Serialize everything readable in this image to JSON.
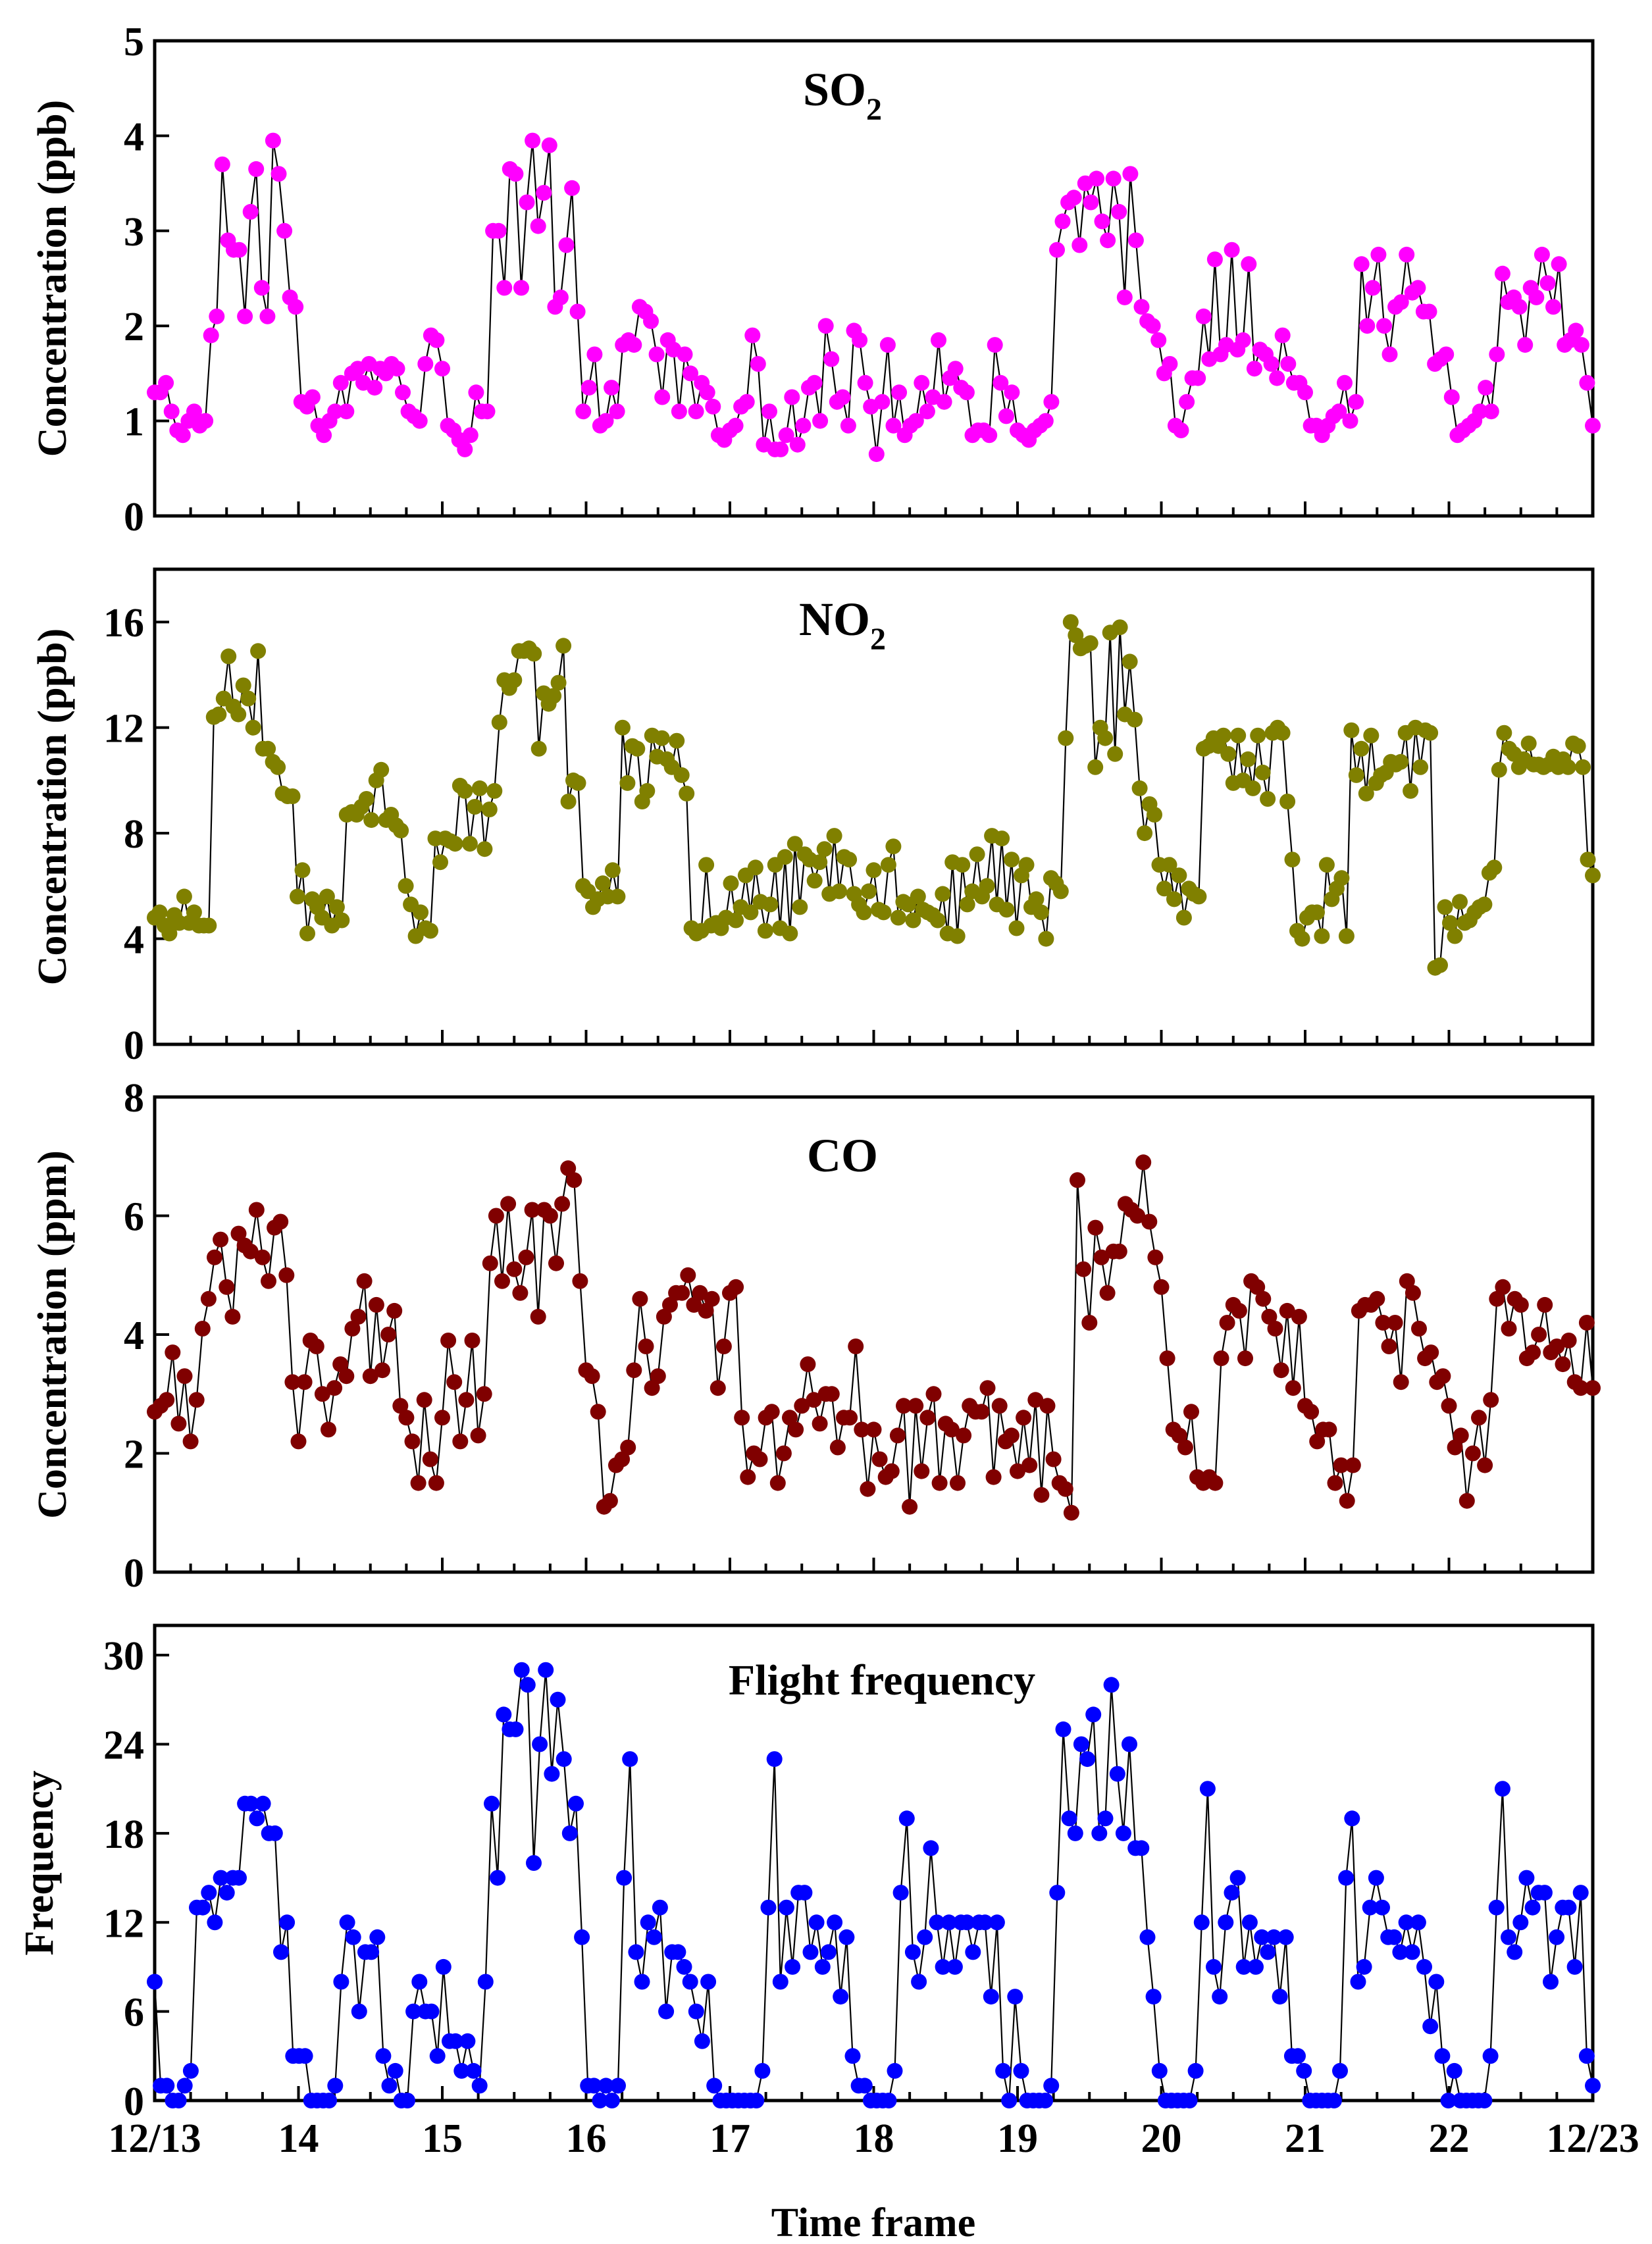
{
  "chart_data": [
    {
      "type": "line",
      "title": "SO2",
      "title_main": "SO",
      "title_sub": "2",
      "ylabel": "Concentration (ppb)",
      "ylim": [
        0,
        5
      ],
      "yticks": [
        0,
        1,
        2,
        3,
        4,
        5
      ],
      "xlim": [
        0,
        10
      ],
      "marker_color": "#ff00ff",
      "values": [
        1.3,
        1.3,
        1.4,
        1.1,
        0.9,
        0.85,
        1.0,
        1.1,
        0.95,
        1.0,
        1.9,
        2.1,
        3.7,
        2.9,
        2.8,
        2.8,
        2.1,
        3.2,
        3.65,
        2.4,
        2.1,
        3.95,
        3.6,
        3.0,
        2.3,
        2.2,
        1.2,
        1.15,
        1.25,
        0.95,
        0.85,
        1.0,
        1.1,
        1.4,
        1.1,
        1.5,
        1.55,
        1.4,
        1.6,
        1.35,
        1.55,
        1.5,
        1.6,
        1.55,
        1.3,
        1.1,
        1.05,
        1.0,
        1.6,
        1.9,
        1.85,
        1.55,
        0.95,
        0.9,
        0.8,
        0.7,
        0.85,
        1.3,
        1.1,
        1.1,
        3.0,
        3.0,
        2.4,
        3.65,
        3.6,
        2.4,
        3.3,
        3.95,
        3.05,
        3.4,
        3.9,
        2.2,
        2.3,
        2.85,
        3.45,
        2.15,
        1.1,
        1.35,
        1.7,
        0.95,
        1.0,
        1.35,
        1.1,
        1.8,
        1.85,
        1.8,
        2.2,
        2.15,
        2.05,
        1.7,
        1.25,
        1.85,
        1.75,
        1.1,
        1.7,
        1.5,
        1.1,
        1.4,
        1.3,
        1.15,
        0.85,
        0.8,
        0.9,
        0.95,
        1.15,
        1.2,
        1.9,
        1.6,
        0.75,
        1.1,
        0.7,
        0.7,
        0.85,
        1.25,
        0.75,
        0.95,
        1.35,
        1.4,
        1.0,
        2.0,
        1.65,
        1.2,
        1.25,
        0.95,
        1.95,
        1.85,
        1.4,
        1.15,
        0.65,
        1.2,
        1.8,
        0.95,
        1.3,
        0.85,
        0.95,
        1.0,
        1.4,
        1.1,
        1.25,
        1.85,
        1.2,
        1.45,
        1.55,
        1.35,
        1.3,
        0.85,
        0.9,
        0.9,
        0.85,
        1.8,
        1.4,
        1.05,
        1.3,
        0.9,
        0.85,
        0.8,
        0.9,
        0.95,
        1.0,
        1.2,
        2.8,
        3.1,
        3.3,
        3.35,
        2.85,
        3.5,
        3.3,
        3.55,
        3.1,
        2.9,
        3.55,
        3.2,
        2.3,
        3.6,
        2.9,
        2.2,
        2.05,
        2.0,
        1.85,
        1.5,
        1.6,
        0.95,
        0.9,
        1.2,
        1.45,
        1.45,
        2.1,
        1.65,
        2.7,
        1.7,
        1.8,
        2.8,
        1.75,
        1.85,
        2.65,
        1.55,
        1.75,
        1.7,
        1.6,
        1.45,
        1.9,
        1.6,
        1.4,
        1.4,
        1.3,
        0.95,
        0.95,
        0.85,
        0.95,
        1.05,
        1.1,
        1.4,
        1.0,
        1.2,
        2.65,
        2.0,
        2.4,
        2.75,
        2.0,
        1.7,
        2.2,
        2.25,
        2.75,
        2.35,
        2.4,
        2.15,
        2.15,
        1.6,
        1.65,
        1.7,
        1.25,
        0.85,
        0.9,
        0.95,
        1.0,
        1.1,
        1.35,
        1.1,
        1.7,
        2.55,
        2.25,
        2.3,
        2.2,
        1.8,
        2.4,
        2.3,
        2.75,
        2.45,
        2.2,
        2.65,
        1.8,
        1.85,
        1.95,
        1.8,
        1.4,
        0.95
      ]
    },
    {
      "type": "line",
      "title": "NO2",
      "title_main": "NO",
      "title_sub": "2",
      "ylabel": "Concentration (ppb)",
      "ylim": [
        0,
        18
      ],
      "yticks": [
        0,
        4,
        8,
        12,
        16
      ],
      "xlim": [
        0,
        10
      ],
      "marker_color": "#808000",
      "values": [
        4.8,
        5.0,
        4.5,
        4.2,
        4.9,
        4.6,
        5.6,
        4.6,
        5.0,
        4.5,
        4.5,
        4.5,
        12.4,
        12.5,
        13.1,
        14.7,
        12.8,
        12.5,
        13.6,
        13.1,
        12.0,
        14.9,
        11.2,
        11.2,
        10.7,
        10.5,
        9.5,
        9.4,
        9.4,
        5.6,
        6.6,
        4.2,
        5.5,
        5.2,
        4.8,
        5.6,
        4.5,
        5.2,
        4.7,
        8.7,
        8.8,
        8.7,
        9.0,
        9.3,
        8.5,
        10.0,
        10.4,
        8.5,
        8.7,
        8.3,
        8.1,
        6.0,
        5.3,
        4.1,
        5.0,
        4.4,
        4.3,
        7.8,
        6.9,
        7.8,
        7.7,
        7.6,
        9.8,
        9.6,
        7.6,
        9.0,
        9.7,
        7.4,
        8.9,
        9.6,
        12.2,
        13.8,
        13.5,
        13.8,
        14.9,
        14.9,
        15.0,
        14.8,
        11.2,
        13.3,
        12.9,
        13.2,
        13.7,
        15.1,
        9.2,
        10.0,
        9.9,
        6.0,
        5.8,
        5.2,
        5.5,
        6.1,
        5.6,
        6.6,
        5.6,
        12.0,
        9.9,
        11.3,
        11.2,
        9.2,
        9.6,
        11.7,
        10.9,
        11.6,
        10.8,
        10.5,
        11.5,
        10.2,
        9.5,
        4.4,
        4.2,
        4.3,
        6.8,
        4.5,
        4.6,
        4.4,
        4.8,
        6.1,
        4.7,
        5.2,
        6.4,
        5.0,
        6.7,
        5.4,
        4.3,
        5.3,
        6.8,
        4.4,
        7.1,
        4.2,
        7.6,
        5.2,
        7.2,
        7.0,
        6.2,
        6.9,
        7.4,
        5.7,
        7.9,
        5.8,
        7.1,
        7.0,
        5.7,
        5.3,
        5.0,
        5.8,
        6.6,
        5.1,
        5.0,
        6.8,
        7.5,
        4.8,
        5.4,
        5.3,
        4.7,
        5.6,
        5.1,
        5.0,
        4.9,
        4.7,
        5.7,
        4.2,
        6.9,
        4.1,
        6.8,
        5.3,
        5.8,
        7.2,
        5.6,
        6.0,
        7.9,
        5.3,
        7.8,
        5.1,
        7.0,
        4.4,
        6.4,
        6.8,
        5.2,
        5.5,
        5.0,
        4.0,
        6.3,
        6.1,
        5.8,
        11.6,
        16.0,
        15.5,
        15.0,
        15.1,
        15.2,
        10.5,
        12.0,
        11.6,
        15.6,
        11.0,
        15.8,
        12.5,
        14.5,
        12.3,
        9.7,
        8.0,
        9.1,
        8.7,
        6.8,
        5.9,
        6.8,
        5.5,
        6.4,
        4.8,
        5.9,
        5.7,
        5.6,
        11.2,
        11.3,
        11.6,
        11.3,
        11.7,
        11.0,
        9.9,
        11.7,
        10.0,
        10.8,
        9.7,
        11.7,
        10.3,
        9.3,
        11.8,
        12.0,
        11.8,
        9.2,
        7.0,
        4.3,
        4.0,
        4.8,
        5.0,
        5.0,
        4.1,
        6.8,
        5.5,
        5.9,
        6.3,
        4.1,
        11.9,
        10.2,
        11.2,
        9.5,
        11.7,
        9.9,
        10.2,
        10.3,
        10.7,
        10.6,
        10.7,
        11.8,
        9.6,
        12.0,
        10.5,
        11.9,
        11.8,
        2.9,
        3.0,
        5.2,
        4.6,
        4.1,
        5.4,
        4.6,
        4.7,
        5.0,
        5.2,
        5.3,
        6.5,
        6.7,
        10.4,
        11.8,
        11.2,
        11.0,
        10.5,
        10.8,
        11.4,
        10.6,
        10.6,
        10.5,
        10.6,
        10.9,
        10.5,
        10.8,
        10.5,
        11.4,
        11.3,
        10.5,
        7.0,
        6.4
      ]
    },
    {
      "type": "line",
      "title": "CO",
      "title_main": "CO",
      "title_sub": "",
      "ylabel": "Concentration (ppm)",
      "ylim": [
        0,
        8
      ],
      "yticks": [
        0,
        2,
        4,
        6,
        8
      ],
      "xlim": [
        0,
        10
      ],
      "marker_color": "#800000",
      "values": [
        2.7,
        2.8,
        2.9,
        3.7,
        2.5,
        3.3,
        2.2,
        2.9,
        4.1,
        4.6,
        5.3,
        5.6,
        4.8,
        4.3,
        5.7,
        5.5,
        5.4,
        6.1,
        5.3,
        4.9,
        5.8,
        5.9,
        5.0,
        3.2,
        2.2,
        3.2,
        3.9,
        3.8,
        3.0,
        2.4,
        3.1,
        3.5,
        3.3,
        4.1,
        4.3,
        4.9,
        3.3,
        4.5,
        3.4,
        4.0,
        4.4,
        2.8,
        2.6,
        2.2,
        1.5,
        2.9,
        1.9,
        1.5,
        2.6,
        3.9,
        3.2,
        2.2,
        2.9,
        3.9,
        2.3,
        3.0,
        5.2,
        6.0,
        4.9,
        6.2,
        5.1,
        4.7,
        5.3,
        6.1,
        4.3,
        6.1,
        6.0,
        5.2,
        6.2,
        6.8,
        6.6,
        4.9,
        3.4,
        3.3,
        2.7,
        1.1,
        1.2,
        1.8,
        1.9,
        2.1,
        3.4,
        4.6,
        3.8,
        3.1,
        3.3,
        4.3,
        4.5,
        4.7,
        4.7,
        5.0,
        4.5,
        4.7,
        4.4,
        4.6,
        3.1,
        3.8,
        4.7,
        4.8,
        2.6,
        1.6,
        2.0,
        1.9,
        2.6,
        2.7,
        1.5,
        2.0,
        2.6,
        2.4,
        2.8,
        3.5,
        2.9,
        2.5,
        3.0,
        3.0,
        2.1,
        2.6,
        2.6,
        3.8,
        2.4,
        1.4,
        2.4,
        1.9,
        1.6,
        1.7,
        2.3,
        2.8,
        1.1,
        2.8,
        1.7,
        2.6,
        3.0,
        1.5,
        2.5,
        2.4,
        1.5,
        2.3,
        2.8,
        2.7,
        2.7,
        3.1,
        1.6,
        2.8,
        2.2,
        2.3,
        1.7,
        2.6,
        1.8,
        2.9,
        1.3,
        2.8,
        1.9,
        1.5,
        1.4,
        1.0,
        6.6,
        5.1,
        4.2,
        5.8,
        5.3,
        4.7,
        5.4,
        5.4,
        6.2,
        6.1,
        6.0,
        6.9,
        5.9,
        5.3,
        4.8,
        3.6,
        2.4,
        2.3,
        2.1,
        2.7,
        1.6,
        1.5,
        1.6,
        1.5,
        3.6,
        4.2,
        4.5,
        4.4,
        3.6,
        4.9,
        4.8,
        4.6,
        4.3,
        4.1,
        3.4,
        4.4,
        3.1,
        4.3,
        2.8,
        2.7,
        2.2,
        2.4,
        2.4,
        1.5,
        1.8,
        1.2,
        1.8,
        4.4,
        4.5,
        4.5,
        4.6,
        4.2,
        3.8,
        4.2,
        3.2,
        4.9,
        4.7,
        4.1,
        3.6,
        3.7,
        3.2,
        3.3,
        2.8,
        2.1,
        2.3,
        1.2,
        2.0,
        2.6,
        1.8,
        2.9,
        4.6,
        4.8,
        4.1,
        4.6,
        4.5,
        3.6,
        3.7,
        4.0,
        4.5,
        3.7,
        3.8,
        3.5,
        3.9,
        3.2,
        3.1,
        4.2,
        3.1
      ]
    },
    {
      "type": "line",
      "title": "Flight frequency",
      "title_main": "Flight frequency",
      "title_sub": "",
      "ylabel": "Frequency",
      "xlabel": "Time frame",
      "ylim": [
        0,
        32
      ],
      "yticks": [
        0,
        6,
        12,
        18,
        24,
        30
      ],
      "xlim": [
        0,
        10
      ],
      "xtick_labels": [
        "12/13",
        "14",
        "15",
        "16",
        "17",
        "18",
        "19",
        "20",
        "21",
        "22",
        "12/23"
      ],
      "marker_color": "#0000ff",
      "values": [
        8,
        1,
        1,
        0,
        0,
        1,
        2,
        13,
        13,
        14,
        12,
        15,
        14,
        15,
        15,
        20,
        20,
        19,
        20,
        18,
        18,
        10,
        12,
        3,
        3,
        3,
        0,
        0,
        0,
        0,
        1,
        8,
        12,
        11,
        6,
        10,
        10,
        11,
        3,
        1,
        2,
        0,
        0,
        6,
        8,
        6,
        6,
        3,
        9,
        4,
        4,
        2,
        4,
        2,
        1,
        8,
        20,
        15,
        26,
        25,
        25,
        29,
        28,
        16,
        24,
        29,
        22,
        27,
        23,
        18,
        20,
        11,
        1,
        1,
        0,
        1,
        0,
        1,
        15,
        23,
        10,
        8,
        12,
        11,
        13,
        6,
        10,
        10,
        9,
        8,
        6,
        4,
        8,
        1,
        0,
        0,
        0,
        0,
        0,
        0,
        0,
        2,
        13,
        23,
        8,
        13,
        9,
        14,
        14,
        10,
        12,
        9,
        10,
        12,
        7,
        11,
        3,
        1,
        1,
        0,
        0,
        0,
        0,
        2,
        14,
        19,
        10,
        8,
        11,
        17,
        12,
        9,
        12,
        9,
        12,
        12,
        10,
        12,
        12,
        7,
        12,
        2,
        0,
        7,
        2,
        0,
        0,
        0,
        0,
        1,
        14,
        25,
        19,
        18,
        24,
        23,
        26,
        18,
        19,
        28,
        22,
        18,
        24,
        17,
        17,
        11,
        7,
        2,
        0,
        0,
        0,
        0,
        0,
        2,
        12,
        21,
        9,
        7,
        12,
        14,
        15,
        9,
        12,
        9,
        11,
        10,
        11,
        7,
        11,
        3,
        3,
        2,
        0,
        0,
        0,
        0,
        0,
        2,
        15,
        19,
        8,
        9,
        13,
        15,
        13,
        11,
        11,
        10,
        12,
        10,
        12,
        9,
        5,
        8,
        3,
        0,
        2,
        0,
        0,
        0,
        0,
        0,
        3,
        13,
        21,
        11,
        10,
        12,
        15,
        13,
        14,
        14,
        8,
        11,
        13,
        13,
        9,
        14,
        3,
        1
      ]
    }
  ]
}
